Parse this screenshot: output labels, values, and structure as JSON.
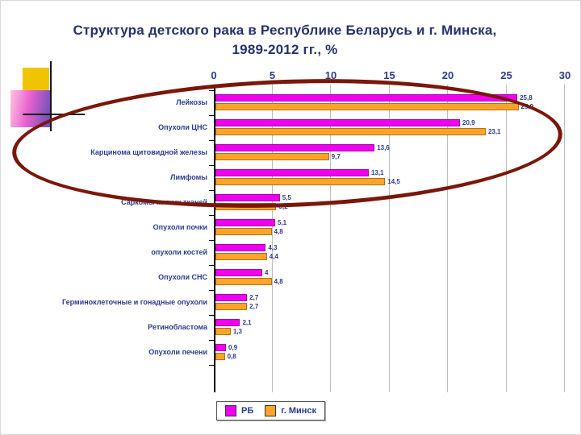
{
  "slide": {
    "title_line1": "Структура детского рака в Республике Беларусь и г. Минска,",
    "title_line2": "1989-2012 гг., %"
  },
  "colors": {
    "title_text": "#27316e",
    "axis_text": "#2a3b8f",
    "series_rb": "#f000f0",
    "series_minsk": "#ffa428",
    "ellipse": "#7b1708",
    "deco_yellow": "#f0c400"
  },
  "chart_data": {
    "type": "bar",
    "orientation": "horizontal",
    "title": "Структура детского рака в Республике Беларусь и г. Минска, 1989-2012 гг., %",
    "categories": [
      "Лейкозы",
      "Опухоли ЦНС",
      "Карцинома щитовидной железы",
      "Лимфомы",
      "Саркомы мягких тканей",
      "Опухоли почки",
      "опухоли костей",
      "Опухоли СНС",
      "Герминоклеточные и гонадные опухоли",
      "Ретинобластома",
      "Опухоли печени"
    ],
    "series": [
      {
        "name": "РБ",
        "color": "#f000f0",
        "values": [
          25.8,
          20.9,
          13.6,
          13.1,
          5.5,
          5.1,
          4.3,
          4,
          2.7,
          2.1,
          0.9
        ],
        "labels": [
          "25,8",
          "20,9",
          "13,6",
          "13,1",
          "5,5",
          "5,1",
          "4,3",
          "4",
          "2,7",
          "2,1",
          "0,9"
        ]
      },
      {
        "name": "г. Минск",
        "color": "#ffa428",
        "values": [
          25.9,
          23.1,
          9.7,
          14.5,
          5.2,
          4.8,
          4.4,
          4.8,
          2.7,
          1.3,
          0.8
        ],
        "labels": [
          "25,9",
          "23,1",
          "9,7",
          "14,5",
          "5,2",
          "4,8",
          "4,4",
          "4,8",
          "2,7",
          "1,3",
          "0,8"
        ]
      }
    ],
    "xlim": [
      0,
      30
    ],
    "xticks": [
      0,
      5,
      10,
      15,
      20,
      25,
      30
    ],
    "grid": true,
    "legend_position": "bottom-left",
    "annotation": "dark-red ellipse highlighting the top four categories"
  }
}
